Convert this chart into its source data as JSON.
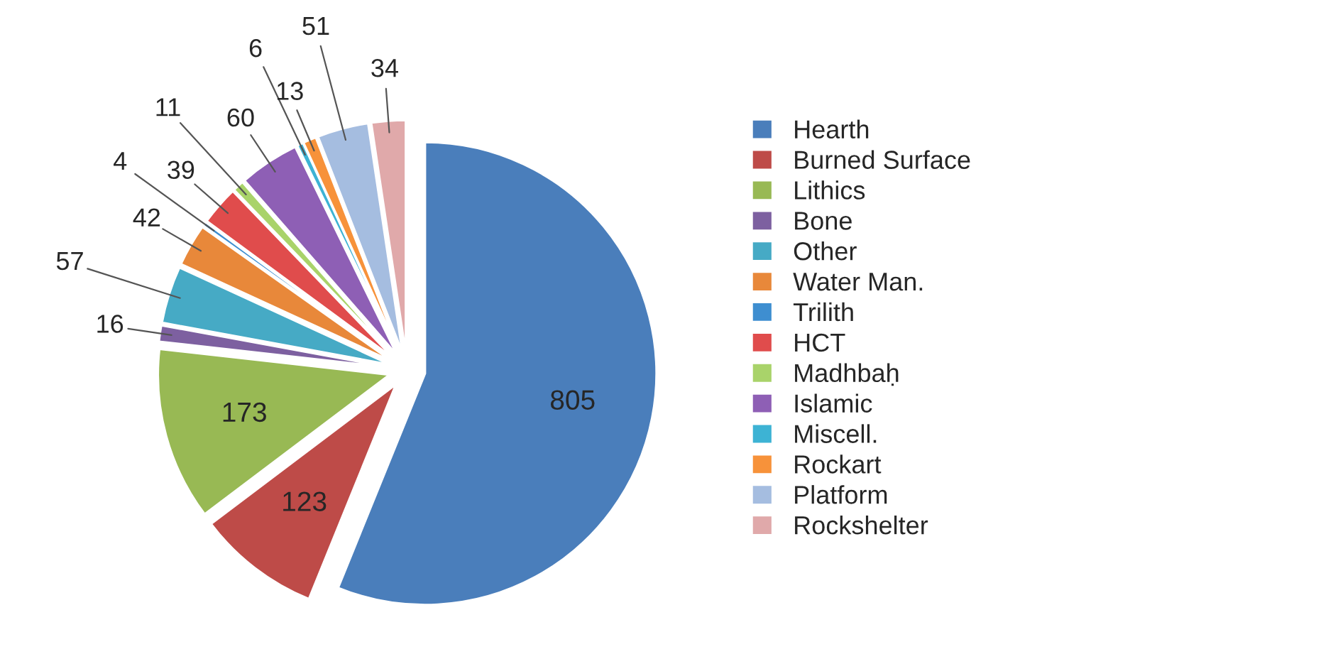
{
  "chart_data": {
    "type": "pie",
    "categories": [
      "Hearth",
      "Burned Surface",
      "Lithics",
      "Bone",
      "Other",
      "Water Man.",
      "Trilith",
      "HCT",
      "Madhbaḥ",
      "Islamic",
      "Miscell.",
      "Rockart",
      "Platform",
      "Rockshelter"
    ],
    "values": [
      805,
      123,
      173,
      16,
      57,
      42,
      4,
      39,
      11,
      60,
      6,
      13,
      51,
      34
    ],
    "colors": [
      "#4a7ebb",
      "#be4b48",
      "#98b954",
      "#7d60a0",
      "#46aac5",
      "#e8883a",
      "#3e8ed0",
      "#e04c4c",
      "#a9d36a",
      "#8e5fb5",
      "#3db3d4",
      "#f7923a",
      "#a5bde0",
      "#e0a9aa"
    ],
    "data_labels": true,
    "legend": "right"
  }
}
